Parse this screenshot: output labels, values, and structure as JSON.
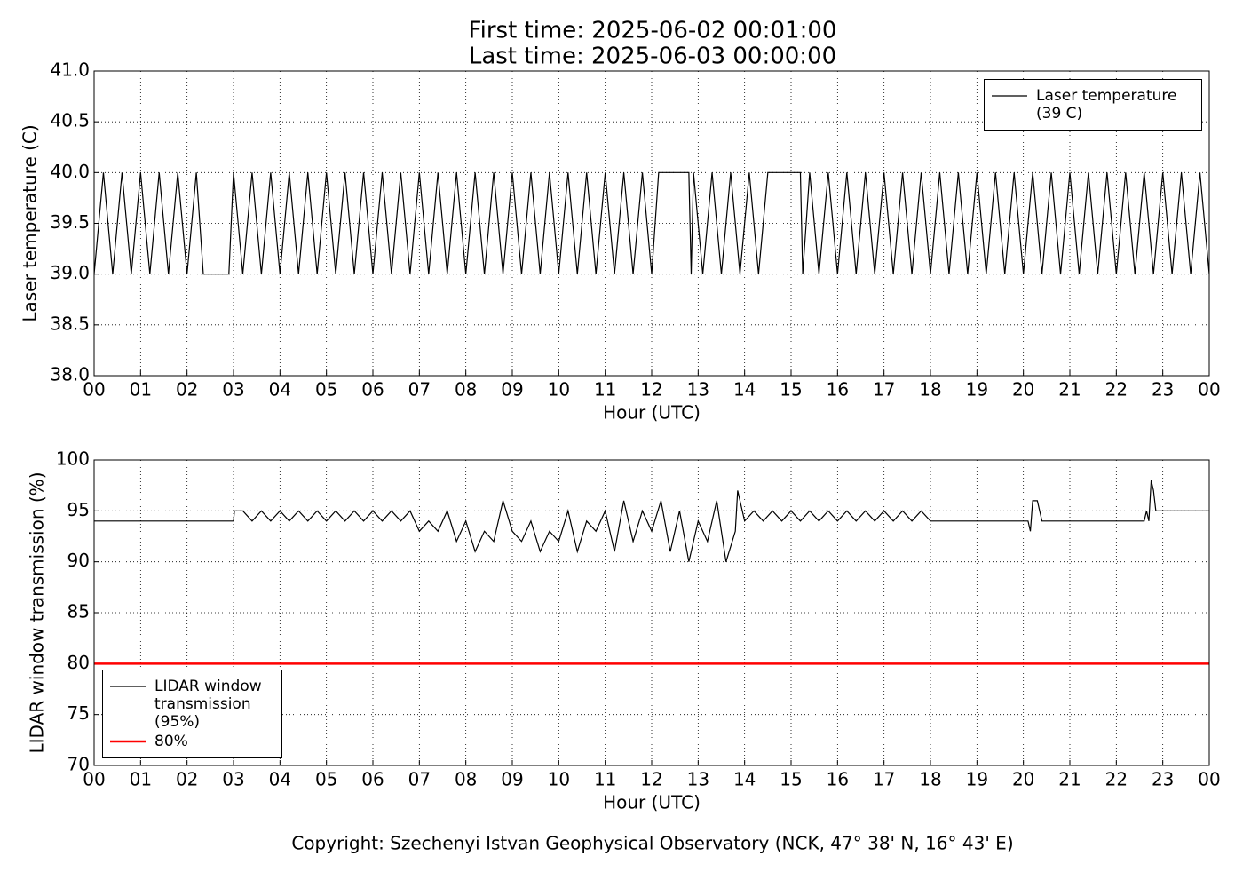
{
  "title": [
    "First time: 2025-06-02 00:01:00",
    "Last time: 2025-06-03 00:00:00"
  ],
  "footer": "Copyright: Szechenyi Istvan Geophysical Observatory (NCK, 47° 38' N, 16° 43' E)",
  "chart_data": [
    {
      "type": "line",
      "xlabel": "Hour (UTC)",
      "ylabel": "Laser temperature (C)",
      "xlim": [
        0,
        24
      ],
      "ylim": [
        38,
        41
      ],
      "grid": true,
      "legend": "upper right",
      "xticks": [
        {
          "value": 0,
          "label": "00"
        },
        {
          "value": 1,
          "label": "01"
        },
        {
          "value": 2,
          "label": "02"
        },
        {
          "value": 3,
          "label": "03"
        },
        {
          "value": 4,
          "label": "04"
        },
        {
          "value": 5,
          "label": "05"
        },
        {
          "value": 6,
          "label": "06"
        },
        {
          "value": 7,
          "label": "07"
        },
        {
          "value": 8,
          "label": "08"
        },
        {
          "value": 9,
          "label": "09"
        },
        {
          "value": 10,
          "label": "10"
        },
        {
          "value": 11,
          "label": "11"
        },
        {
          "value": 12,
          "label": "12"
        },
        {
          "value": 13,
          "label": "13"
        },
        {
          "value": 14,
          "label": "14"
        },
        {
          "value": 15,
          "label": "15"
        },
        {
          "value": 16,
          "label": "16"
        },
        {
          "value": 17,
          "label": "17"
        },
        {
          "value": 18,
          "label": "18"
        },
        {
          "value": 19,
          "label": "19"
        },
        {
          "value": 20,
          "label": "20"
        },
        {
          "value": 21,
          "label": "21"
        },
        {
          "value": 22,
          "label": "22"
        },
        {
          "value": 23,
          "label": "23"
        },
        {
          "value": 24,
          "label": "00"
        }
      ],
      "yticks": [
        {
          "value": 38,
          "label": "38.0"
        },
        {
          "value": 38.5,
          "label": "38.5"
        },
        {
          "value": 39,
          "label": "39.0"
        },
        {
          "value": 39.5,
          "label": "39.5"
        },
        {
          "value": 40,
          "label": "40.0"
        },
        {
          "value": 40.5,
          "label": "40.5"
        },
        {
          "value": 41,
          "label": "41.0"
        }
      ],
      "series": [
        {
          "name": "Laser temperature (39 C)",
          "color": "#000000",
          "x": [
            0,
            0.2,
            0.4,
            0.6,
            0.8,
            1.0,
            1.2,
            1.4,
            1.6,
            1.8,
            2.0,
            2.2,
            2.35,
            2.9,
            3.0,
            3.2,
            3.4,
            3.6,
            3.8,
            4.0,
            4.2,
            4.4,
            4.6,
            4.8,
            5.0,
            5.2,
            5.4,
            5.6,
            5.8,
            6.0,
            6.2,
            6.4,
            6.6,
            6.8,
            7.0,
            7.2,
            7.4,
            7.6,
            7.8,
            8.0,
            8.2,
            8.4,
            8.6,
            8.8,
            9.0,
            9.2,
            9.4,
            9.6,
            9.8,
            10.0,
            10.2,
            10.4,
            10.6,
            10.8,
            11.0,
            11.2,
            11.4,
            11.6,
            11.8,
            12.0,
            12.15,
            12.8,
            12.85,
            12.9,
            13.1,
            13.3,
            13.5,
            13.7,
            13.9,
            14.1,
            14.3,
            14.5,
            15.2,
            15.25,
            15.4,
            15.6,
            15.8,
            16.0,
            16.2,
            16.4,
            16.6,
            16.8,
            17.0,
            17.2,
            17.4,
            17.6,
            17.8,
            18.0,
            18.2,
            18.4,
            18.6,
            18.8,
            19.0,
            19.2,
            19.4,
            19.6,
            19.8,
            20.0,
            20.2,
            20.4,
            20.6,
            20.8,
            21.0,
            21.2,
            21.4,
            21.6,
            21.8,
            22.0,
            22.2,
            22.4,
            22.6,
            22.8,
            23.0,
            23.2,
            23.4,
            23.6,
            23.8,
            24.0
          ],
          "values": [
            39,
            40,
            39,
            40,
            39,
            40,
            39,
            40,
            39,
            40,
            39,
            40,
            39,
            39,
            40,
            39,
            40,
            39,
            40,
            39,
            40,
            39,
            40,
            39,
            40,
            39,
            40,
            39,
            40,
            39,
            40,
            39,
            40,
            39,
            40,
            39,
            40,
            39,
            40,
            39,
            40,
            39,
            40,
            39,
            40,
            39,
            40,
            39,
            40,
            39,
            40,
            39,
            40,
            39,
            40,
            39,
            40,
            39,
            40,
            39,
            40,
            40,
            39,
            40,
            39,
            40,
            39,
            40,
            39,
            40,
            39,
            40,
            40,
            39,
            40,
            39,
            40,
            39,
            40,
            39,
            40,
            39,
            40,
            39,
            40,
            39,
            40,
            39,
            40,
            39,
            40,
            39,
            40,
            39,
            40,
            39,
            40,
            39,
            40,
            39,
            40,
            39,
            40,
            39,
            40,
            39,
            40,
            39,
            40,
            39,
            40,
            39,
            40,
            39,
            40,
            39,
            40,
            39
          ]
        }
      ]
    },
    {
      "type": "line",
      "xlabel": "Hour (UTC)",
      "ylabel": "LIDAR window transmission (%)",
      "xlim": [
        0,
        24
      ],
      "ylim": [
        70,
        100
      ],
      "grid": true,
      "legend": "lower left",
      "xticks": [
        {
          "value": 0,
          "label": "00"
        },
        {
          "value": 1,
          "label": "01"
        },
        {
          "value": 2,
          "label": "02"
        },
        {
          "value": 3,
          "label": "03"
        },
        {
          "value": 4,
          "label": "04"
        },
        {
          "value": 5,
          "label": "05"
        },
        {
          "value": 6,
          "label": "06"
        },
        {
          "value": 7,
          "label": "07"
        },
        {
          "value": 8,
          "label": "08"
        },
        {
          "value": 9,
          "label": "09"
        },
        {
          "value": 10,
          "label": "10"
        },
        {
          "value": 11,
          "label": "11"
        },
        {
          "value": 12,
          "label": "12"
        },
        {
          "value": 13,
          "label": "13"
        },
        {
          "value": 14,
          "label": "14"
        },
        {
          "value": 15,
          "label": "15"
        },
        {
          "value": 16,
          "label": "16"
        },
        {
          "value": 17,
          "label": "17"
        },
        {
          "value": 18,
          "label": "18"
        },
        {
          "value": 19,
          "label": "19"
        },
        {
          "value": 20,
          "label": "20"
        },
        {
          "value": 21,
          "label": "21"
        },
        {
          "value": 22,
          "label": "22"
        },
        {
          "value": 23,
          "label": "23"
        },
        {
          "value": 24,
          "label": "00"
        }
      ],
      "yticks": [
        70,
        75,
        80,
        85,
        90,
        95,
        100
      ],
      "series": [
        {
          "name": "LIDAR window transmission (95%)",
          "color": "#000000",
          "x": [
            0,
            3.0,
            3.02,
            3.2,
            3.4,
            3.6,
            3.8,
            4.0,
            4.2,
            4.4,
            4.6,
            4.8,
            5.0,
            5.2,
            5.4,
            5.6,
            5.8,
            6.0,
            6.2,
            6.4,
            6.6,
            6.8,
            7.0,
            7.2,
            7.4,
            7.6,
            7.8,
            8.0,
            8.2,
            8.4,
            8.6,
            8.8,
            9.0,
            9.2,
            9.4,
            9.6,
            9.8,
            10.0,
            10.2,
            10.4,
            10.6,
            10.8,
            11.0,
            11.2,
            11.4,
            11.6,
            11.8,
            12.0,
            12.2,
            12.4,
            12.6,
            12.8,
            13.0,
            13.2,
            13.4,
            13.6,
            13.8,
            13.85,
            14.0,
            14.2,
            14.4,
            14.6,
            14.8,
            15.0,
            15.2,
            15.4,
            15.6,
            15.8,
            16.0,
            16.2,
            16.4,
            16.6,
            16.8,
            17.0,
            17.2,
            17.4,
            17.6,
            17.8,
            18.0,
            20.1,
            20.15,
            20.2,
            20.3,
            20.35,
            20.4,
            22.6,
            22.65,
            22.7,
            22.75,
            22.8,
            22.85,
            24
          ],
          "values": [
            94,
            94,
            95,
            95,
            94,
            95,
            94,
            95,
            94,
            95,
            94,
            95,
            94,
            95,
            94,
            95,
            94,
            95,
            94,
            95,
            94,
            95,
            93,
            94,
            93,
            95,
            92,
            94,
            91,
            93,
            92,
            96,
            93,
            92,
            94,
            91,
            93,
            92,
            95,
            91,
            94,
            93,
            95,
            91,
            96,
            92,
            95,
            93,
            96,
            91,
            95,
            90,
            94,
            92,
            96,
            90,
            93,
            97,
            94,
            95,
            94,
            95,
            94,
            95,
            94,
            95,
            94,
            95,
            94,
            95,
            94,
            95,
            94,
            95,
            94,
            95,
            94,
            95,
            94,
            94,
            93,
            96,
            96,
            95,
            94,
            94,
            95,
            94,
            98,
            97,
            95,
            95
          ]
        },
        {
          "name": "80%",
          "color": "#ff0000",
          "x": [
            0,
            24
          ],
          "values": [
            80,
            80
          ]
        }
      ]
    }
  ]
}
